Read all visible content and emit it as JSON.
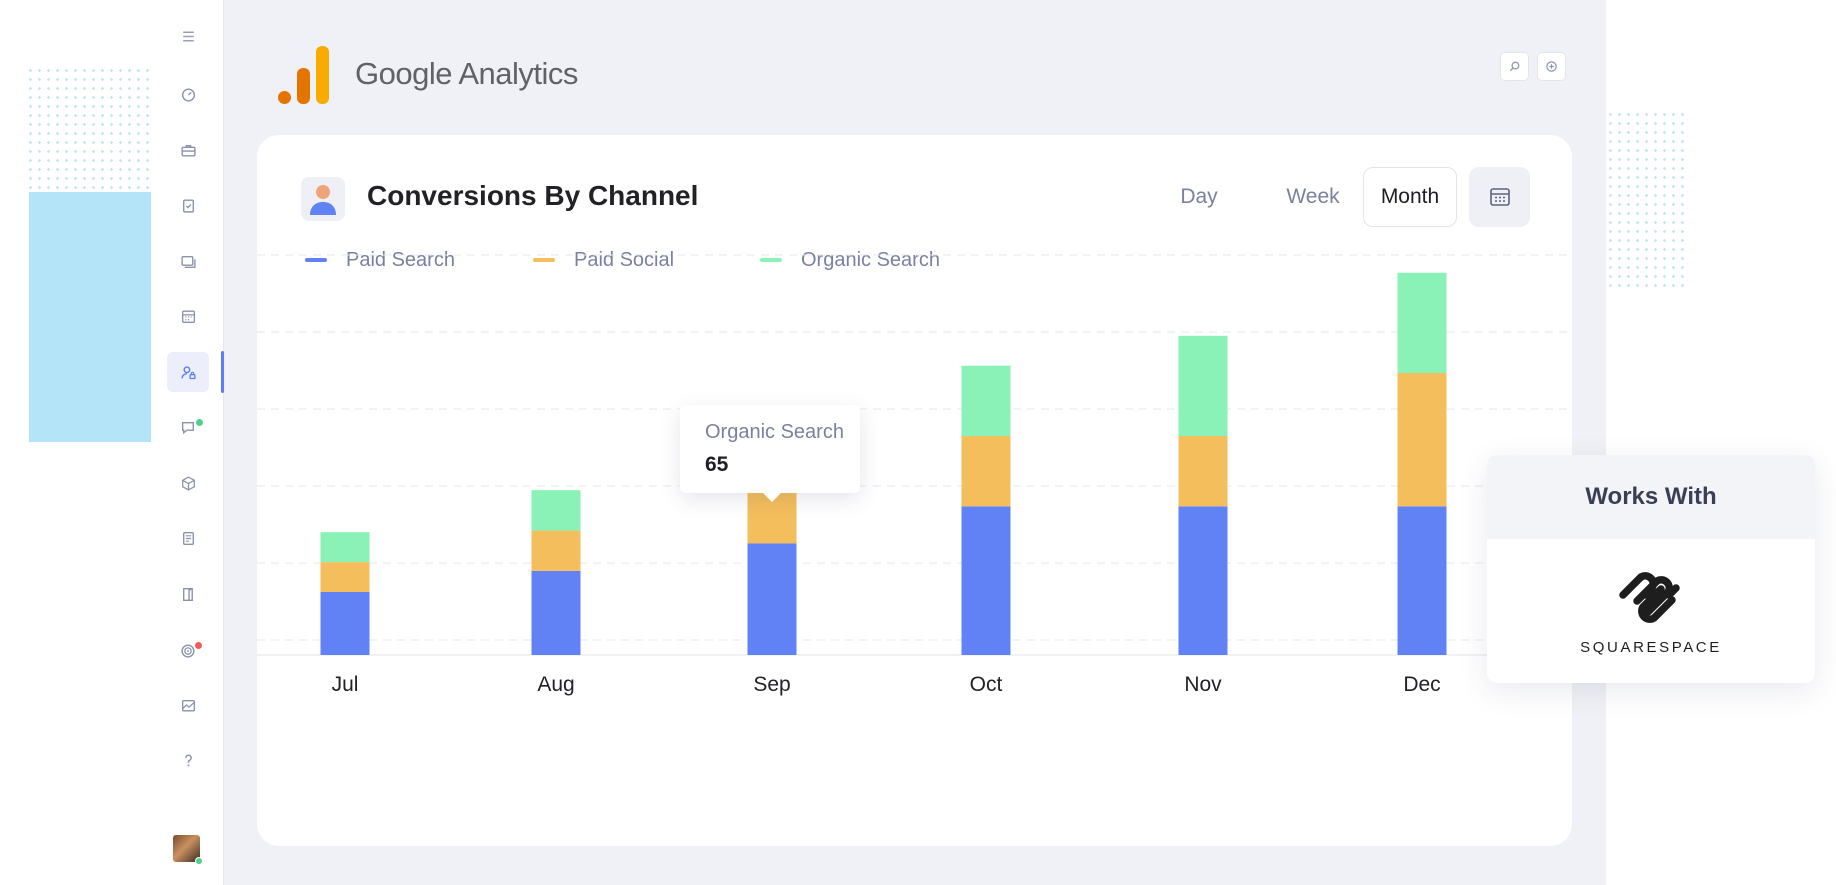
{
  "app": {
    "brand": {
      "name_google": "Google",
      "name_analytics": "Analytics"
    },
    "sidebar": {
      "items": [
        {
          "icon": "menu-icon"
        },
        {
          "icon": "dashboard-icon"
        },
        {
          "icon": "briefcase-icon"
        },
        {
          "icon": "clipboard-icon"
        },
        {
          "icon": "cards-icon"
        },
        {
          "icon": "calendar-icon"
        },
        {
          "icon": "user-lock-icon",
          "active": true
        },
        {
          "icon": "chat-icon",
          "badge": "#4fd18b"
        },
        {
          "icon": "box-icon"
        },
        {
          "icon": "document-icon"
        },
        {
          "icon": "book-icon"
        },
        {
          "icon": "target-icon",
          "badge": "#ef5a5a"
        },
        {
          "icon": "chart-icon"
        },
        {
          "icon": "help-icon"
        }
      ]
    },
    "top_buttons": [
      {
        "icon": "search-icon"
      },
      {
        "icon": "add-circle-icon"
      }
    ],
    "accent": "#5b7cf6"
  },
  "card": {
    "title": "Conversions By Channel",
    "periods": [
      {
        "label": "Day",
        "active": false
      },
      {
        "label": "Week",
        "active": false
      },
      {
        "label": "Month",
        "active": true
      }
    ],
    "calendar_icon": "calendar-icon"
  },
  "tooltip": {
    "label": "Organic Search",
    "value": "65"
  },
  "works_with": {
    "title": "Works With",
    "logo_text": "SQUARESPACE"
  },
  "chart_data": {
    "type": "bar",
    "stacked": true,
    "categories": [
      "Jul",
      "Aug",
      "Sep",
      "Oct",
      "Nov",
      "Dec"
    ],
    "series": [
      {
        "name": "Paid Search",
        "color": "#6182f5",
        "values": [
          78,
          104,
          138,
          184,
          184,
          184
        ]
      },
      {
        "name": "Paid Social",
        "color": "#f5be5c",
        "values": [
          37,
          50,
          65,
          87,
          87,
          165
        ]
      },
      {
        "name": "Organic Search",
        "color": "#8af2b6",
        "values": [
          37,
          50,
          65,
          87,
          124,
          124
        ]
      }
    ],
    "ylim": [
      0,
      495
    ],
    "grid": true,
    "legend": "top-left"
  }
}
